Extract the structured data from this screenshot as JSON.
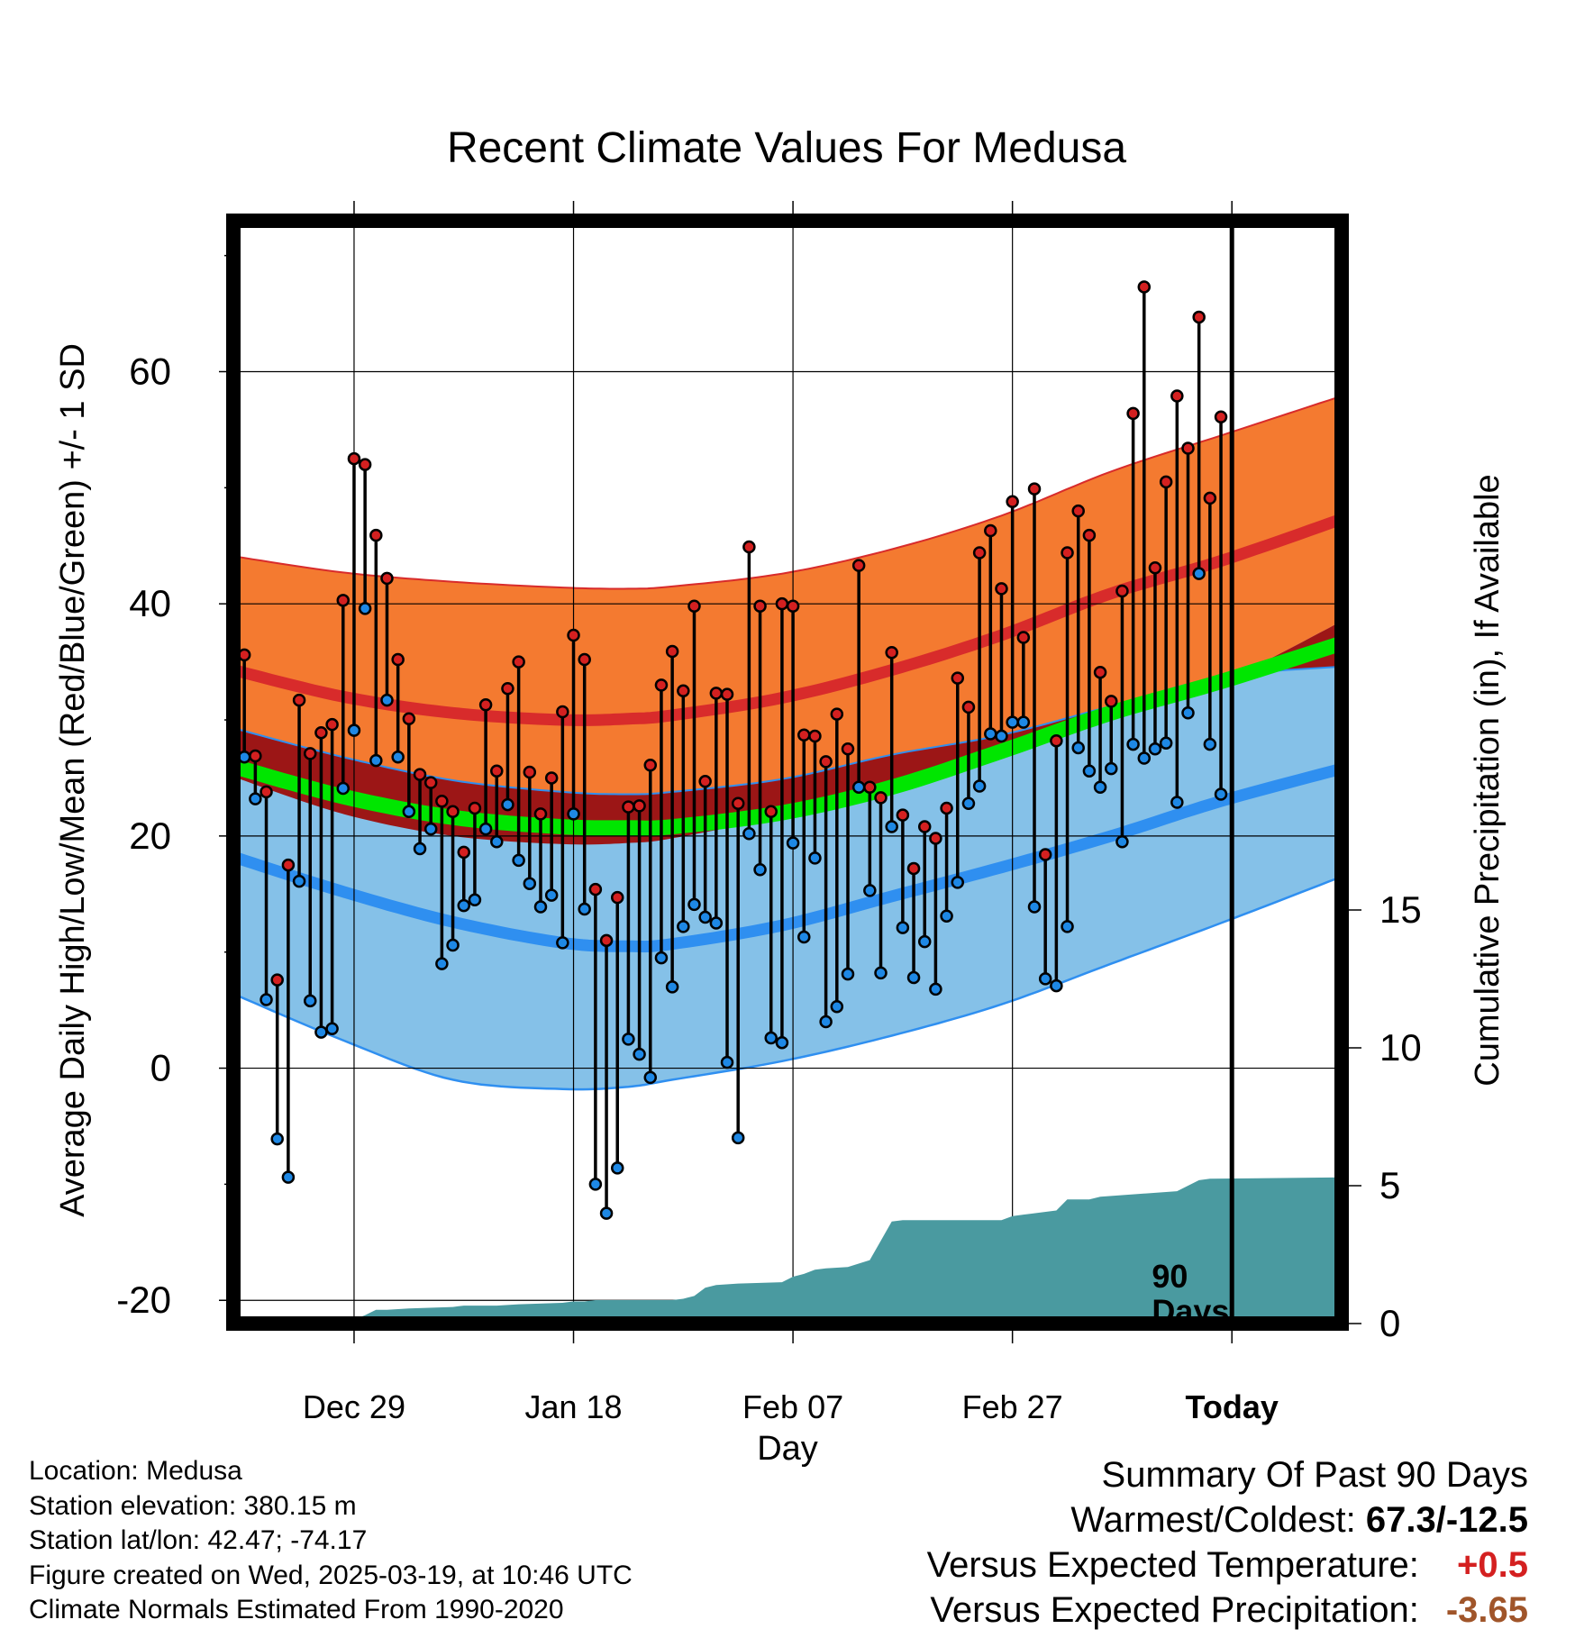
{
  "chart_data": {
    "type": "line",
    "title": "Recent Climate Values For Medusa",
    "xlabel": "Day",
    "ylabel": "Average Daily High/Low/Mean (Red/Blue/Green) +/- 1 SD",
    "y2label": "Cumulative Precipitation (in), If Available",
    "x_tick_labels": [
      "Dec 29",
      "Jan 18",
      "Feb 07",
      "Feb 27",
      "Today"
    ],
    "x_tick_days": [
      11,
      31,
      51,
      71,
      91
    ],
    "xlim": [
      0,
      101
    ],
    "ylim": [
      -22,
      73
    ],
    "y_ticks": [
      -20,
      0,
      20,
      40,
      60
    ],
    "y2_ticks": [
      0,
      5,
      10,
      15
    ],
    "y2lim": [
      0,
      40
    ],
    "window_label_line1": "90",
    "window_label_line2": "Days",
    "today_day": 91,
    "grid": true,
    "colors": {
      "high_band": "#f47a30",
      "high_mean": "#d82b2b",
      "low_band": "#85c1e8",
      "low_mean": "#2f8ff0",
      "mean": "#00e600",
      "overlap": "#9c1616",
      "precip": "#4a9aa0",
      "high_marker": "#d42020",
      "low_marker": "#1e88e5",
      "stem": "#000000"
    },
    "normals": {
      "days": [
        0,
        10,
        20,
        30,
        36,
        40,
        50,
        60,
        70,
        80,
        90,
        101
      ],
      "high_upper": [
        44.1,
        42.7,
        41.9,
        41.4,
        41.3,
        41.5,
        42.6,
        44.7,
        47.6,
        51.4,
        54.5,
        57.9
      ],
      "high_mean": [
        34.3,
        32.0,
        30.6,
        30.0,
        30.1,
        30.4,
        31.9,
        34.3,
        37.3,
        40.9,
        43.7,
        47.3
      ],
      "high_lower": [
        25.1,
        21.9,
        20.0,
        19.3,
        19.4,
        19.8,
        21.7,
        24.0,
        27.0,
        30.5,
        33.3,
        38.5
      ],
      "mean": [
        26.0,
        23.4,
        21.6,
        20.8,
        20.7,
        20.8,
        22.0,
        24.2,
        27.3,
        30.6,
        33.3,
        36.6
      ],
      "low_upper": [
        29.3,
        26.8,
        24.8,
        23.8,
        23.6,
        23.8,
        24.9,
        27.0,
        28.7,
        31.2,
        33.7,
        34.6
      ],
      "low_mean": [
        18.2,
        15.2,
        12.6,
        10.8,
        10.5,
        10.7,
        12.3,
        14.8,
        17.3,
        20.0,
        23.0,
        25.8
      ],
      "low_lower": [
        6.4,
        2.4,
        -1.0,
        -1.8,
        -1.6,
        -1.0,
        0.6,
        2.8,
        5.5,
        9.0,
        12.5,
        16.5
      ]
    },
    "series": [
      {
        "name": "High",
        "values": [
          35.6,
          26.9,
          23.8,
          7.6,
          17.5,
          31.7,
          27.1,
          28.9,
          29.6,
          40.3,
          52.5,
          52.0,
          45.9,
          42.2,
          35.2,
          30.1,
          25.3,
          24.6,
          23.0,
          22.1,
          18.6,
          22.4,
          31.3,
          25.6,
          32.7,
          35.0,
          25.5,
          21.9,
          25.0,
          30.7,
          37.3,
          35.2,
          15.4,
          11.0,
          14.7,
          22.5,
          22.6,
          26.1,
          33.0,
          35.9,
          32.5,
          39.8,
          24.7,
          32.3,
          32.2,
          22.8,
          44.9,
          39.8,
          22.1,
          40.0,
          39.8,
          28.7,
          28.6,
          26.4,
          30.5,
          27.5,
          43.3,
          24.2,
          23.3,
          35.8,
          21.8,
          17.2,
          20.8,
          19.8,
          22.4,
          33.6,
          31.1,
          44.4,
          46.3,
          41.3,
          48.8,
          37.1,
          49.9,
          18.4,
          28.2,
          44.4,
          48.0,
          45.9,
          34.1,
          31.6,
          41.1,
          56.4,
          67.3,
          43.1,
          50.5,
          57.9,
          53.4,
          64.7,
          49.1,
          56.1
        ]
      },
      {
        "name": "Low",
        "values": [
          26.8,
          23.2,
          5.9,
          -6.1,
          -9.4,
          16.1,
          5.8,
          3.1,
          3.4,
          24.1,
          29.1,
          39.6,
          26.5,
          31.7,
          26.8,
          22.1,
          18.9,
          20.6,
          9.0,
          10.6,
          14.0,
          14.5,
          20.6,
          19.5,
          22.7,
          17.9,
          15.9,
          13.9,
          14.9,
          10.8,
          21.9,
          13.7,
          -10.0,
          -12.5,
          -8.6,
          2.5,
          1.2,
          -0.8,
          9.5,
          7.0,
          12.2,
          14.1,
          13.0,
          12.5,
          0.5,
          -6.0,
          20.2,
          17.1,
          2.6,
          2.2,
          19.4,
          11.3,
          18.1,
          4.0,
          5.3,
          8.1,
          24.2,
          15.3,
          8.2,
          20.8,
          12.1,
          7.8,
          10.9,
          6.8,
          13.1,
          16.0,
          22.8,
          24.3,
          28.8,
          28.6,
          29.8,
          29.8,
          13.9,
          7.7,
          7.1,
          12.2,
          27.6,
          25.6,
          24.2,
          25.8,
          19.5,
          27.9,
          26.7,
          27.5,
          28.0,
          22.9,
          30.6,
          42.6,
          27.9,
          23.6
        ]
      }
    ],
    "precip_cumulative": {
      "days": [
        0,
        10,
        11,
        12,
        13,
        14,
        16,
        20,
        21,
        24,
        26,
        30,
        31,
        32,
        33,
        34,
        40,
        41,
        42,
        43,
        44,
        46,
        50,
        51,
        52,
        53,
        54,
        56,
        58,
        59,
        60,
        61,
        70,
        71,
        72,
        75,
        76,
        77,
        78,
        79,
        86,
        87,
        88,
        89,
        101
      ],
      "values": [
        0.0,
        0.0,
        0.15,
        0.3,
        0.5,
        0.5,
        0.55,
        0.6,
        0.65,
        0.65,
        0.7,
        0.75,
        0.8,
        0.8,
        0.85,
        0.85,
        0.85,
        0.9,
        1.0,
        1.3,
        1.4,
        1.45,
        1.5,
        1.7,
        1.8,
        1.95,
        2.0,
        2.05,
        2.3,
        3.0,
        3.7,
        3.75,
        3.75,
        3.9,
        3.95,
        4.1,
        4.5,
        4.5,
        4.5,
        4.6,
        4.8,
        5.0,
        5.2,
        5.25,
        5.3
      ]
    }
  },
  "info": {
    "location": "Location: Medusa",
    "elevation": "Station elevation: 380.15 m",
    "latlon": "Station lat/lon: 42.47; -74.17",
    "created": "Figure created on Wed, 2025-03-19, at 10:46 UTC",
    "normals": "Climate Normals Estimated From 1990-2020"
  },
  "summary": {
    "title": "Summary Of Past 90 Days",
    "warmest_coldest_label": "Warmest/Coldest:",
    "warmest_coldest_value": "67.3/-12.5",
    "temp_label": "Versus Expected Temperature:",
    "temp_value": "+0.5",
    "temp_color": "#d42020",
    "precip_label": "Versus Expected Precipitation:",
    "precip_value": "-3.65",
    "precip_color": "#a0552a"
  }
}
